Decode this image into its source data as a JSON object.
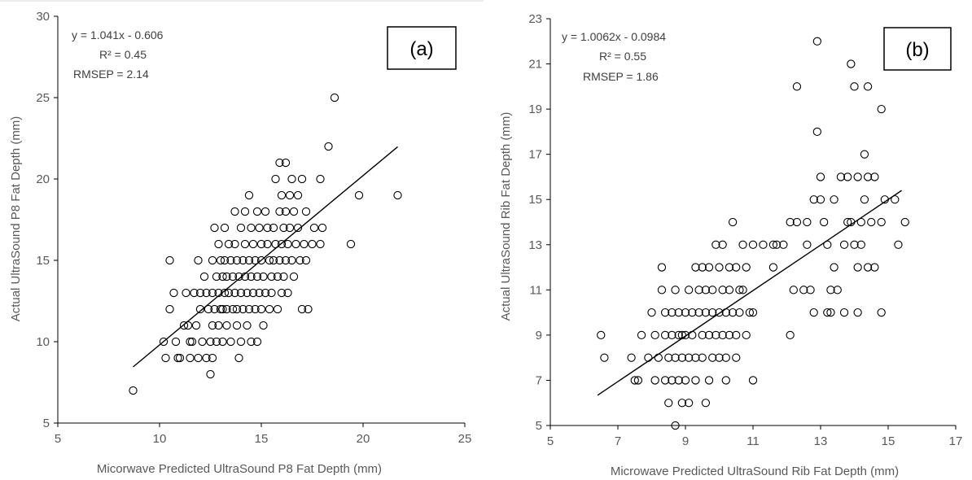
{
  "colors": {
    "axis": "#000000",
    "marker": "#000000",
    "trendline": "#000000",
    "label_text": "#595959"
  },
  "chart_data": [
    {
      "type": "scatter",
      "panel_label": "(a)",
      "xlabel": "Micorwave Predicted UltraSound P8 Fat Depth (mm)",
      "ylabel": "Actual UltraSound P8 Fat Depth (mm)",
      "xlim": [
        5,
        25
      ],
      "ylim": [
        5,
        30
      ],
      "xticks": [
        "5",
        "10",
        "15",
        "20",
        "25"
      ],
      "yticks": [
        "5",
        "10",
        "15",
        "20",
        "25",
        "30"
      ],
      "grid": false,
      "equation": "y = 1.041x - 0.606",
      "r_squared": "R² = 0.45",
      "rmsep": "RMSEP = 2.14",
      "trendline": {
        "x": [
          8.7,
          21.7
        ],
        "y": [
          8.45,
          21.98
        ]
      },
      "points": [
        [
          8.7,
          7
        ],
        [
          10.2,
          10
        ],
        [
          10.3,
          9
        ],
        [
          10.5,
          15
        ],
        [
          10.5,
          12
        ],
        [
          10.7,
          13
        ],
        [
          10.8,
          10
        ],
        [
          10.9,
          9
        ],
        [
          11.0,
          9
        ],
        [
          11.2,
          11
        ],
        [
          11.3,
          13
        ],
        [
          11.4,
          11
        ],
        [
          11.5,
          10
        ],
        [
          11.5,
          9
        ],
        [
          11.6,
          10
        ],
        [
          11.7,
          13
        ],
        [
          11.8,
          11
        ],
        [
          11.9,
          15
        ],
        [
          11.9,
          9
        ],
        [
          12.0,
          13
        ],
        [
          12.0,
          12
        ],
        [
          12.1,
          10
        ],
        [
          12.2,
          14
        ],
        [
          12.3,
          13
        ],
        [
          12.3,
          9
        ],
        [
          12.4,
          12
        ],
        [
          12.5,
          8
        ],
        [
          12.5,
          10
        ],
        [
          12.6,
          15
        ],
        [
          12.6,
          13
        ],
        [
          12.6,
          11
        ],
        [
          12.6,
          9
        ],
        [
          12.7,
          17
        ],
        [
          12.7,
          12
        ],
        [
          12.8,
          14
        ],
        [
          12.8,
          10
        ],
        [
          12.9,
          16
        ],
        [
          12.9,
          13
        ],
        [
          12.9,
          11
        ],
        [
          13.0,
          15
        ],
        [
          13.0,
          12
        ],
        [
          13.1,
          14
        ],
        [
          13.1,
          12
        ],
        [
          13.1,
          10
        ],
        [
          13.2,
          17
        ],
        [
          13.2,
          15
        ],
        [
          13.2,
          13
        ],
        [
          13.3,
          14
        ],
        [
          13.3,
          12
        ],
        [
          13.3,
          11
        ],
        [
          13.4,
          16
        ],
        [
          13.4,
          13
        ],
        [
          13.5,
          15
        ],
        [
          13.5,
          10
        ],
        [
          13.6,
          14
        ],
        [
          13.6,
          12
        ],
        [
          13.7,
          18
        ],
        [
          13.7,
          16
        ],
        [
          13.7,
          13
        ],
        [
          13.8,
          15
        ],
        [
          13.8,
          12
        ],
        [
          13.8,
          11
        ],
        [
          13.9,
          14
        ],
        [
          13.9,
          9
        ],
        [
          14.0,
          17
        ],
        [
          14.0,
          13
        ],
        [
          14.0,
          10
        ],
        [
          14.1,
          15
        ],
        [
          14.1,
          12
        ],
        [
          14.2,
          18
        ],
        [
          14.2,
          16
        ],
        [
          14.2,
          14
        ],
        [
          14.3,
          13
        ],
        [
          14.3,
          11
        ],
        [
          14.4,
          19
        ],
        [
          14.4,
          15
        ],
        [
          14.4,
          12
        ],
        [
          14.5,
          17
        ],
        [
          14.5,
          14
        ],
        [
          14.5,
          10
        ],
        [
          14.6,
          16
        ],
        [
          14.6,
          13
        ],
        [
          14.7,
          15
        ],
        [
          14.7,
          12
        ],
        [
          14.8,
          18
        ],
        [
          14.8,
          14
        ],
        [
          14.8,
          10
        ],
        [
          14.9,
          17
        ],
        [
          14.9,
          13
        ],
        [
          15.0,
          16
        ],
        [
          15.0,
          15
        ],
        [
          15.0,
          12
        ],
        [
          15.1,
          14
        ],
        [
          15.1,
          11
        ],
        [
          15.2,
          18
        ],
        [
          15.2,
          13
        ],
        [
          15.3,
          17
        ],
        [
          15.3,
          16
        ],
        [
          15.4,
          15
        ],
        [
          15.4,
          12
        ],
        [
          15.5,
          14
        ],
        [
          15.5,
          13
        ],
        [
          15.6,
          17
        ],
        [
          15.6,
          15
        ],
        [
          15.7,
          16
        ],
        [
          15.7,
          20
        ],
        [
          15.8,
          14
        ],
        [
          15.8,
          12
        ],
        [
          15.9,
          21
        ],
        [
          15.9,
          18
        ],
        [
          15.9,
          15
        ],
        [
          16.0,
          19
        ],
        [
          16.0,
          16
        ],
        [
          16.0,
          13
        ],
        [
          16.1,
          17
        ],
        [
          16.1,
          14
        ],
        [
          16.2,
          21
        ],
        [
          16.2,
          18
        ],
        [
          16.2,
          15
        ],
        [
          16.3,
          16
        ],
        [
          16.3,
          13
        ],
        [
          16.4,
          19
        ],
        [
          16.4,
          17
        ],
        [
          16.5,
          20
        ],
        [
          16.5,
          15
        ],
        [
          16.6,
          14
        ],
        [
          16.6,
          18
        ],
        [
          16.7,
          16
        ],
        [
          16.8,
          19
        ],
        [
          16.8,
          17
        ],
        [
          16.9,
          15
        ],
        [
          17.0,
          20
        ],
        [
          17.0,
          12
        ],
        [
          17.1,
          16
        ],
        [
          17.2,
          18
        ],
        [
          17.2,
          15
        ],
        [
          17.3,
          12
        ],
        [
          17.5,
          16
        ],
        [
          17.6,
          17
        ],
        [
          17.9,
          20
        ],
        [
          17.9,
          16
        ],
        [
          18.0,
          17
        ],
        [
          18.3,
          22
        ],
        [
          18.6,
          25
        ],
        [
          19.4,
          16
        ],
        [
          19.8,
          19
        ],
        [
          21.7,
          19
        ]
      ]
    },
    {
      "type": "scatter",
      "panel_label": "(b)",
      "xlabel": "Microwave Predicted UltraSound Rib Fat Depth (mm)",
      "ylabel": "Actual UltraSound Rib Fat Depth (mm)",
      "xlim": [
        5,
        17
      ],
      "ylim": [
        5,
        23
      ],
      "xticks": [
        "5",
        "7",
        "9",
        "11",
        "13",
        "15",
        "17"
      ],
      "yticks": [
        "5",
        "7",
        "9",
        "11",
        "13",
        "15",
        "17",
        "19",
        "21",
        "23"
      ],
      "grid": false,
      "equation": "y = 1.0062x - 0.0984",
      "r_squared": "R² = 0.55",
      "rmsep": "RMSEP = 1.86",
      "trendline": {
        "x": [
          6.4,
          15.4
        ],
        "y": [
          6.34,
          15.4
        ]
      },
      "points": [
        [
          6.5,
          9
        ],
        [
          6.6,
          8
        ],
        [
          7.4,
          8
        ],
        [
          7.5,
          7
        ],
        [
          7.6,
          7
        ],
        [
          7.7,
          9
        ],
        [
          7.9,
          8
        ],
        [
          8.0,
          10
        ],
        [
          8.1,
          9
        ],
        [
          8.1,
          7
        ],
        [
          8.2,
          8
        ],
        [
          8.3,
          12
        ],
        [
          8.3,
          11
        ],
        [
          8.4,
          10
        ],
        [
          8.4,
          9
        ],
        [
          8.4,
          7
        ],
        [
          8.5,
          8
        ],
        [
          8.5,
          6
        ],
        [
          8.6,
          10
        ],
        [
          8.6,
          9
        ],
        [
          8.6,
          7
        ],
        [
          8.7,
          11
        ],
        [
          8.7,
          8
        ],
        [
          8.7,
          5
        ],
        [
          8.8,
          10
        ],
        [
          8.8,
          9
        ],
        [
          8.8,
          7
        ],
        [
          8.9,
          9
        ],
        [
          8.9,
          8
        ],
        [
          8.9,
          6
        ],
        [
          9.0,
          10
        ],
        [
          9.0,
          9
        ],
        [
          9.0,
          7
        ],
        [
          9.1,
          11
        ],
        [
          9.1,
          8
        ],
        [
          9.1,
          6
        ],
        [
          9.2,
          10
        ],
        [
          9.2,
          9
        ],
        [
          9.3,
          12
        ],
        [
          9.3,
          8
        ],
        [
          9.3,
          7
        ],
        [
          9.4,
          11
        ],
        [
          9.4,
          10
        ],
        [
          9.5,
          9
        ],
        [
          9.5,
          12
        ],
        [
          9.5,
          8
        ],
        [
          9.6,
          11
        ],
        [
          9.6,
          10
        ],
        [
          9.6,
          6
        ],
        [
          9.7,
          12
        ],
        [
          9.7,
          9
        ],
        [
          9.7,
          7
        ],
        [
          9.8,
          11
        ],
        [
          9.8,
          10
        ],
        [
          9.8,
          8
        ],
        [
          9.9,
          13
        ],
        [
          9.9,
          9
        ],
        [
          10.0,
          12
        ],
        [
          10.0,
          10
        ],
        [
          10.0,
          8
        ],
        [
          10.1,
          11
        ],
        [
          10.1,
          9
        ],
        [
          10.1,
          13
        ],
        [
          10.2,
          10
        ],
        [
          10.2,
          8
        ],
        [
          10.2,
          7
        ],
        [
          10.3,
          12
        ],
        [
          10.3,
          11
        ],
        [
          10.3,
          9
        ],
        [
          10.4,
          14
        ],
        [
          10.4,
          10
        ],
        [
          10.5,
          9
        ],
        [
          10.5,
          12
        ],
        [
          10.5,
          8
        ],
        [
          10.6,
          11
        ],
        [
          10.6,
          10
        ],
        [
          10.7,
          13
        ],
        [
          10.7,
          11
        ],
        [
          10.8,
          9
        ],
        [
          10.8,
          12
        ],
        [
          10.9,
          10
        ],
        [
          11.0,
          13
        ],
        [
          11.0,
          7
        ],
        [
          11.0,
          10
        ],
        [
          11.3,
          13
        ],
        [
          11.6,
          13
        ],
        [
          11.6,
          12
        ],
        [
          11.7,
          13
        ],
        [
          11.9,
          13
        ],
        [
          12.1,
          14
        ],
        [
          12.1,
          9
        ],
        [
          12.2,
          11
        ],
        [
          12.3,
          14
        ],
        [
          12.3,
          20
        ],
        [
          12.5,
          11
        ],
        [
          12.6,
          14
        ],
        [
          12.6,
          13
        ],
        [
          12.7,
          11
        ],
        [
          12.8,
          15
        ],
        [
          12.8,
          10
        ],
        [
          12.9,
          22
        ],
        [
          12.9,
          18
        ],
        [
          13.0,
          15
        ],
        [
          13.0,
          16
        ],
        [
          13.1,
          14
        ],
        [
          13.2,
          13
        ],
        [
          13.2,
          10
        ],
        [
          13.3,
          11
        ],
        [
          13.3,
          10
        ],
        [
          13.4,
          12
        ],
        [
          13.4,
          15
        ],
        [
          13.5,
          11
        ],
        [
          13.6,
          16
        ],
        [
          13.7,
          13
        ],
        [
          13.7,
          10
        ],
        [
          13.8,
          16
        ],
        [
          13.8,
          14
        ],
        [
          13.9,
          21
        ],
        [
          13.9,
          14
        ],
        [
          14.0,
          20
        ],
        [
          14.0,
          13
        ],
        [
          14.1,
          16
        ],
        [
          14.1,
          12
        ],
        [
          14.1,
          10
        ],
        [
          14.2,
          14
        ],
        [
          14.2,
          13
        ],
        [
          14.3,
          17
        ],
        [
          14.3,
          15
        ],
        [
          14.4,
          16
        ],
        [
          14.4,
          20
        ],
        [
          14.4,
          12
        ],
        [
          14.5,
          14
        ],
        [
          14.6,
          12
        ],
        [
          14.6,
          16
        ],
        [
          14.8,
          14
        ],
        [
          14.8,
          10
        ],
        [
          14.8,
          19
        ],
        [
          14.9,
          15
        ],
        [
          15.2,
          15
        ],
        [
          15.3,
          13
        ],
        [
          15.5,
          14
        ]
      ]
    }
  ]
}
